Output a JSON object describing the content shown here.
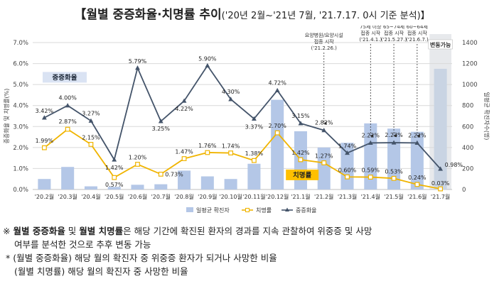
{
  "header": {
    "title": "【월별 중증화율·치명률 추이",
    "period": "('20년 2월~'21년 7월, '21.7.17. 0시 기준 분석)】"
  },
  "chart_data": {
    "type": "bar",
    "categories": [
      "'20.2월",
      "'20.3월",
      "'20.4월",
      "'20.5월",
      "'20.6월",
      "'20.7월",
      "'20.8월",
      "'20.9월",
      "'20.10월",
      "'20.11월",
      "'20.12월",
      "'21.1월",
      "'21.2월",
      "'21.3월",
      "'21.4월",
      "'21.5월",
      "'21.6월",
      "'21.7월"
    ],
    "series": [
      {
        "name": "일평균 확진자",
        "type": "bar",
        "axis": "right",
        "values": [
          100,
          215,
          30,
          25,
          45,
          50,
          180,
          125,
          100,
          245,
          855,
          555,
          400,
          445,
          630,
          580,
          550,
          1150
        ]
      },
      {
        "name": "치명률",
        "type": "line",
        "axis": "left",
        "values": [
          1.99,
          2.87,
          2.15,
          0.57,
          1.2,
          0.73,
          1.47,
          1.76,
          1.74,
          1.38,
          2.7,
          1.42,
          1.27,
          0.6,
          0.59,
          0.53,
          0.24,
          0.03
        ]
      },
      {
        "name": "중증화율",
        "type": "line",
        "axis": "left",
        "values": [
          3.42,
          4.0,
          3.27,
          1.42,
          5.79,
          3.25,
          4.22,
          5.9,
          4.3,
          3.37,
          4.72,
          3.15,
          2.82,
          1.74,
          2.22,
          2.23,
          2.22,
          0.98
        ]
      }
    ],
    "severe_labels": [
      "3.42%",
      "4.00%",
      "3.27%",
      "1.42%",
      "5.79%",
      "3.25%",
      "4.22%",
      "5.90%",
      "4.30%",
      "3.37%",
      "4.72%",
      "3.15%",
      "2.82%",
      "1.74%",
      "2.22%",
      "2.23%",
      "2.22%",
      "0.98%"
    ],
    "fatal_labels": [
      "1.99%",
      "2.87%",
      "2.15%",
      "0.57%",
      "1.20%",
      "0.73%",
      "1.47%",
      "1.76%",
      "1.74%",
      "1.38%",
      "2.70%",
      "1.42%",
      "1.27%",
      "0.60%",
      "0.59%",
      "0.53%",
      "0.24%",
      "0.03%"
    ],
    "ylim_left": [
      0,
      7
    ],
    "ylim_right": [
      0,
      1400
    ],
    "yticks_left": [
      "0.0%",
      "1.0%",
      "2.0%",
      "3.0%",
      "4.0%",
      "5.0%",
      "6.0%",
      "7.0%"
    ],
    "yticks_right": [
      "0",
      "200",
      "400",
      "600",
      "800",
      "1000",
      "1200",
      "1400"
    ],
    "ylabel_left": "중증화율 및 치명률(%)",
    "ylabel_right": "일평균 확진자수(명)",
    "legend": [
      "일평균 확진자",
      "치명률",
      "중증화율"
    ],
    "callout_severe": "중증화율",
    "callout_fatal": "치명률",
    "variable_box": "변동가능",
    "annotations": [
      {
        "index": 12,
        "lines": [
          "요양병원/요양시설",
          "접종 시작",
          "('21.2.26.)"
        ]
      },
      {
        "index": 14,
        "lines": [
          "75세 이상",
          "접종 시작",
          "('21.4.1.)"
        ]
      },
      {
        "index": 15,
        "lines": [
          "65~74세",
          "접종 시작",
          "('21.5.27.)"
        ]
      },
      {
        "index": 16,
        "lines": [
          "60~64세",
          "접종 시작",
          "('21.6.7.)"
        ]
      }
    ],
    "colors": {
      "bar": "#b4c7e7",
      "bar_last": "#c9d4e3",
      "fatal": "#f0b400",
      "severe": "#44546a",
      "callout_severe_bg": "#dae3f3",
      "callout_fatal_bg": "#ffc000",
      "shade": "#e7e9ec"
    }
  },
  "notes": {
    "line1_mark": "※",
    "line1_bold1": "월별 중증화율",
    "line1_and": " 및 ",
    "line1_bold2": "월별 치명률",
    "line1_rest": "은 해당 기간에 확진된 환자의 경과를 지속 관찰하여 위중증 및 사망",
    "line2": "여부를 분석한 것으로 추후 변동 가능",
    "line3": "* (월별 중증화율) 해당 월의 확진자 중 위중증 환자가 되거나 사망한 비율",
    "line4": "(월별 치명률) 해당 월의 확진자 중 사망한 비율"
  }
}
